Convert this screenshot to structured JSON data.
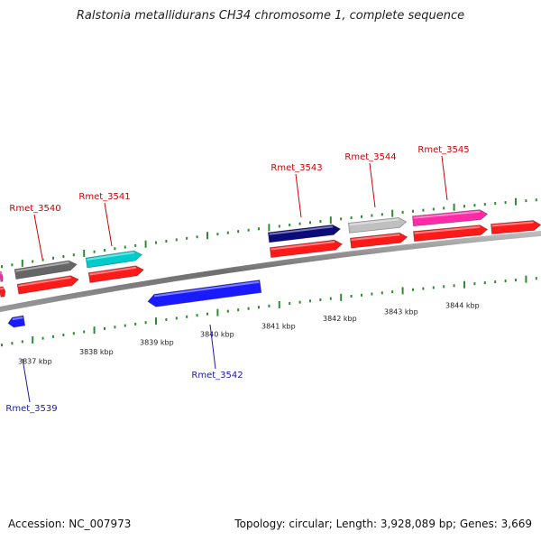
{
  "title": "Ralstonia metallidurans CH34 chromosome 1, complete sequence",
  "footer": {
    "accession": "Accession: NC_007973",
    "summary": "Topology: circular; Length: 3,928,089 bp; Genes: 3,669"
  },
  "colors": {
    "backbone": "#8a8a8a",
    "tick": "#2e8b2e",
    "label_forward": "#cc0000",
    "label_reverse": "#1a1aa8",
    "cds_red": "#ff1a1a"
  },
  "kbp_labels": [
    "3837 kbp",
    "3838 kbp",
    "3839 kbp",
    "3840 kbp",
    "3841 kbp",
    "3842 kbp",
    "3843 kbp",
    "3844 kbp"
  ],
  "genes_forward": [
    {
      "name": "Rmet_3540",
      "color": "#666666"
    },
    {
      "name": "Rmet_3541",
      "color": "#00cccc"
    },
    {
      "name": "Rmet_3543",
      "color": "#0a0a78"
    },
    {
      "name": "Rmet_3544",
      "color": "#c0c0c0"
    },
    {
      "name": "Rmet_3545",
      "color": "#ff2aa8"
    }
  ],
  "genes_reverse": [
    {
      "name": "Rmet_3539",
      "color": "#1a1aff"
    },
    {
      "name": "Rmet_3542",
      "color": "#1a1aff"
    }
  ]
}
